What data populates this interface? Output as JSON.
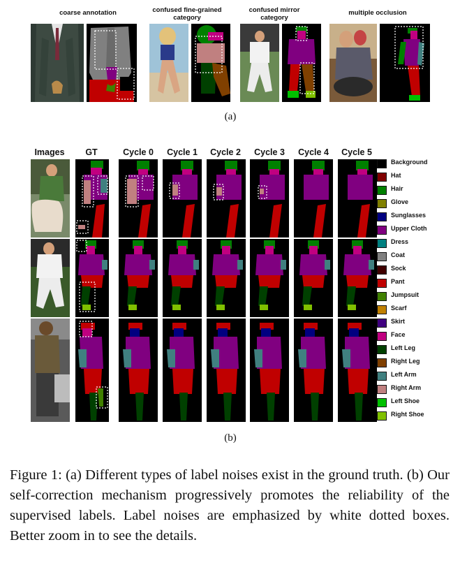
{
  "part_a": {
    "headers": [
      "coarse annotation",
      "confused fine-grained category",
      "confused mirror category",
      "multiple occlusion"
    ],
    "label": "(a)"
  },
  "part_b": {
    "column_headers": [
      "Images",
      "GT",
      "Cycle 0",
      "Cycle 1",
      "Cycle 2",
      "Cycle 3",
      "Cycle 4",
      "Cycle 5"
    ],
    "label": "(b)"
  },
  "legend": [
    {
      "label": "Background",
      "color": "#000000"
    },
    {
      "label": "Hat",
      "color": "#800000"
    },
    {
      "label": "Hair",
      "color": "#008000"
    },
    {
      "label": "Glove",
      "color": "#808000"
    },
    {
      "label": "Sunglasses",
      "color": "#000080"
    },
    {
      "label": "Upper Cloth",
      "color": "#800080"
    },
    {
      "label": "Dress",
      "color": "#008080"
    },
    {
      "label": "Coat",
      "color": "#808080"
    },
    {
      "label": "Sock",
      "color": "#400000"
    },
    {
      "label": "Pant",
      "color": "#c00000"
    },
    {
      "label": "Jumpsuit",
      "color": "#408000"
    },
    {
      "label": "Scarf",
      "color": "#c08000"
    },
    {
      "label": "Skirt",
      "color": "#400080"
    },
    {
      "label": "Face",
      "color": "#c00080"
    },
    {
      "label": "Left Leg",
      "color": "#004000"
    },
    {
      "label": "Right Leg",
      "color": "#804000"
    },
    {
      "label": "Left Arm",
      "color": "#408080"
    },
    {
      "label": "Right Arm",
      "color": "#c08080"
    },
    {
      "label": "Left Shoe",
      "color": "#00c000"
    },
    {
      "label": "Right Shoe",
      "color": "#80c000"
    }
  ],
  "caption": "Figure 1: (a) Different types of label noises exist in the ground truth. (b) Our self-correction mechanism progressively promotes the reliability of the supervised labels. Label noises are emphasized by white dotted boxes. Better zoom in to see the details."
}
